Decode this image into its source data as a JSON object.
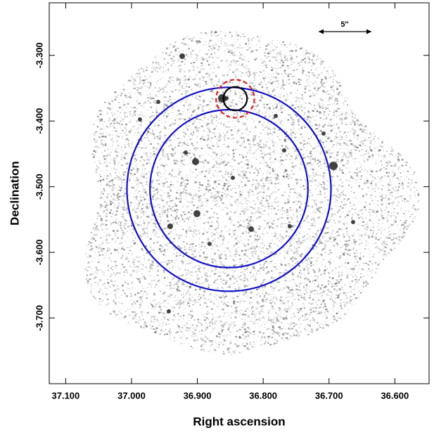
{
  "chart_data": {
    "type": "sky-image",
    "xlabel": "Right ascension",
    "ylabel": "Declination",
    "xlim": [
      37.125,
      36.548
    ],
    "ylim": [
      -3.8,
      -3.22
    ],
    "xticks": [
      {
        "value": 37.1,
        "label": "37.100"
      },
      {
        "value": 37.0,
        "label": "37.000"
      },
      {
        "value": 36.9,
        "label": "36.900"
      },
      {
        "value": 36.8,
        "label": "36.800"
      },
      {
        "value": 36.7,
        "label": "36.700"
      },
      {
        "value": 36.6,
        "label": "36.600"
      }
    ],
    "yticks": [
      {
        "value": -3.3,
        "label": "-3.300"
      },
      {
        "value": -3.4,
        "label": "-3.400"
      },
      {
        "value": -3.5,
        "label": "-3.500"
      },
      {
        "value": -3.6,
        "label": "-3.600"
      },
      {
        "value": -3.7,
        "label": "-3.700"
      }
    ],
    "circles": [
      {
        "x": 36.852,
        "y": -3.504,
        "r": 0.155,
        "color": "#1010c8",
        "style": "solid"
      },
      {
        "x": 36.852,
        "y": -3.503,
        "r": 0.12,
        "color": "#1010c8",
        "style": "solid"
      },
      {
        "x": 36.8425,
        "y": -3.366,
        "r": 0.029,
        "color": "#e02020",
        "style": "dashed"
      },
      {
        "x": 36.8425,
        "y": -3.366,
        "r": 0.018,
        "color": "#000000",
        "style": "solid"
      }
    ],
    "scale_bar_label": "5''"
  }
}
